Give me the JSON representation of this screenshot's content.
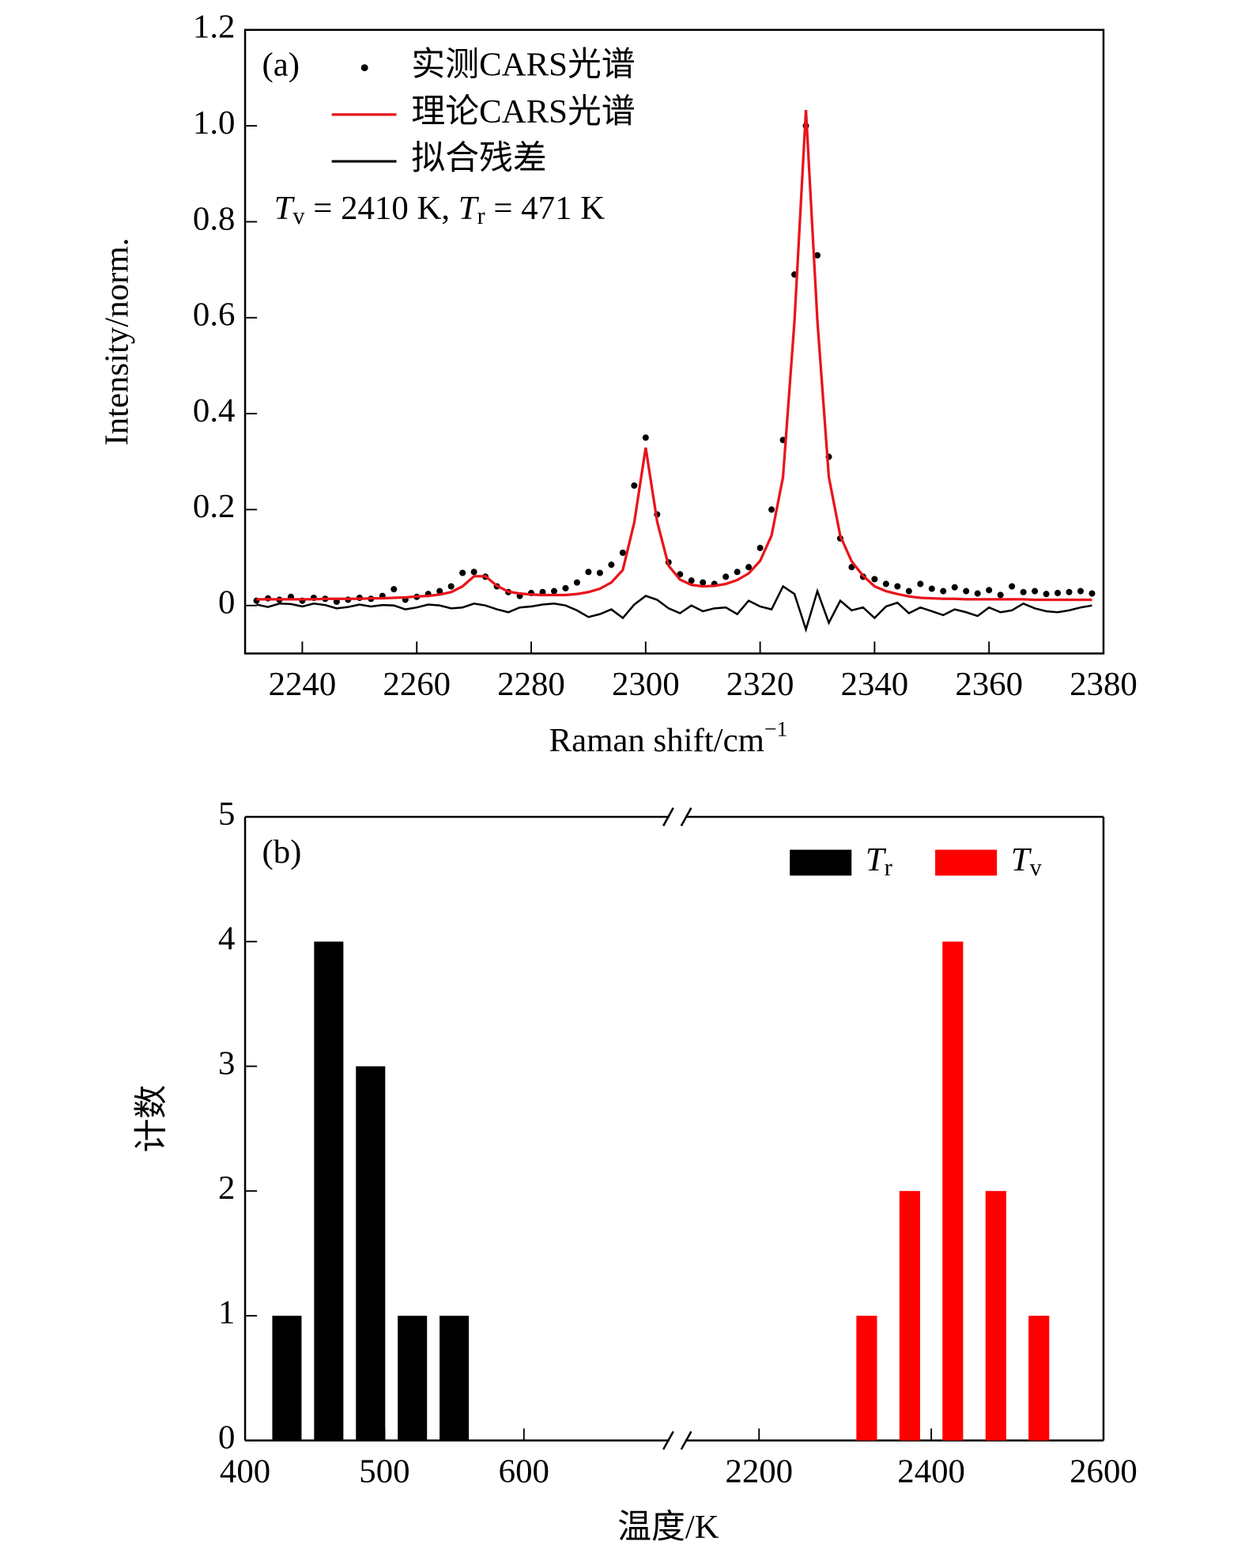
{
  "chart_data": [
    {
      "type": "line",
      "panel_label": "(a)",
      "x_label": "Raman shift/cm−1",
      "y_label": "Intensity/norm.",
      "annotation": "Tv = 2410 K, Tr = 471 K",
      "xlim": [
        2230,
        2380
      ],
      "xticks": [
        2240,
        2260,
        2280,
        2300,
        2320,
        2340,
        2360,
        2380
      ],
      "ylim": [
        -0.1,
        1.2
      ],
      "yticks": [
        0,
        0.2,
        0.4,
        0.6,
        0.8,
        {
          "value": 1,
          "label": "1.0"
        },
        1.2
      ],
      "legend": "upper left",
      "x": [
        2232,
        2234,
        2236,
        2238,
        2240,
        2242,
        2244,
        2246,
        2248,
        2250,
        2252,
        2254,
        2256,
        2258,
        2260,
        2262,
        2264,
        2266,
        2268,
        2270,
        2272,
        2274,
        2276,
        2278,
        2280,
        2282,
        2284,
        2286,
        2288,
        2290,
        2292,
        2294,
        2296,
        2298,
        2300,
        2302,
        2304,
        2306,
        2308,
        2310,
        2312,
        2314,
        2316,
        2318,
        2320,
        2322,
        2324,
        2326,
        2328,
        2330,
        2332,
        2334,
        2336,
        2338,
        2340,
        2342,
        2344,
        2346,
        2348,
        2350,
        2352,
        2354,
        2356,
        2358,
        2360,
        2362,
        2364,
        2366,
        2368,
        2370,
        2372,
        2374,
        2376,
        2378
      ],
      "series": [
        {
          "name": "实测CARS光谱",
          "color": "#000000",
          "mode": "markers",
          "values": [
            0.01,
            0.015,
            0.012,
            0.018,
            0.01,
            0.016,
            0.014,
            0.008,
            0.012,
            0.016,
            0.014,
            0.02,
            0.034,
            0.012,
            0.018,
            0.024,
            0.03,
            0.04,
            0.068,
            0.07,
            0.06,
            0.04,
            0.028,
            0.02,
            0.026,
            0.028,
            0.03,
            0.036,
            0.048,
            0.07,
            0.068,
            0.085,
            0.11,
            0.25,
            0.35,
            0.19,
            0.09,
            0.065,
            0.052,
            0.048,
            0.045,
            0.06,
            0.07,
            0.08,
            0.12,
            0.2,
            0.345,
            0.69,
            1.0,
            0.73,
            0.31,
            0.14,
            0.08,
            0.06,
            0.055,
            0.045,
            0.04,
            0.03,
            0.045,
            0.035,
            0.03,
            0.038,
            0.03,
            0.025,
            0.032,
            0.022,
            0.04,
            0.028,
            0.03,
            0.024,
            0.026,
            0.028,
            0.03,
            0.025
          ]
        },
        {
          "name": "理论CARS光谱",
          "color": "#e8141b",
          "mode": "line",
          "values": [
            0.013,
            0.013,
            0.013,
            0.013,
            0.013,
            0.013,
            0.014,
            0.014,
            0.014,
            0.014,
            0.015,
            0.015,
            0.016,
            0.017,
            0.019,
            0.02,
            0.023,
            0.028,
            0.04,
            0.061,
            0.061,
            0.041,
            0.029,
            0.025,
            0.023,
            0.022,
            0.022,
            0.022,
            0.024,
            0.028,
            0.035,
            0.048,
            0.074,
            0.173,
            0.329,
            0.175,
            0.083,
            0.054,
            0.043,
            0.04,
            0.041,
            0.045,
            0.053,
            0.067,
            0.093,
            0.146,
            0.268,
            0.593,
            1.033,
            0.594,
            0.268,
            0.145,
            0.092,
            0.062,
            0.04,
            0.03,
            0.024,
            0.019,
            0.016,
            0.015,
            0.014,
            0.014,
            0.013,
            0.013,
            0.013,
            0.013,
            0.013,
            0.013,
            0.012,
            0.012,
            0.012,
            0.012,
            0.012,
            0.012
          ]
        },
        {
          "name": "拟合残差",
          "color": "#000000",
          "mode": "line",
          "values": [
            0.002,
            -0.003,
            0.004,
            0.003,
            -0.002,
            0.004,
            0.001,
            -0.006,
            -0.003,
            0.002,
            -0.002,
            0.001,
            0.0,
            -0.008,
            -0.004,
            0.002,
            0.0,
            -0.006,
            -0.004,
            0.004,
            0.0,
            -0.008,
            -0.014,
            -0.004,
            -0.002,
            0.002,
            0.004,
            0.0,
            -0.01,
            -0.024,
            -0.018,
            -0.008,
            -0.026,
            0.002,
            0.02,
            0.012,
            -0.006,
            -0.016,
            0.0,
            -0.012,
            -0.006,
            -0.004,
            -0.018,
            0.01,
            -0.002,
            -0.008,
            0.04,
            0.024,
            -0.05,
            0.03,
            -0.036,
            0.01,
            -0.01,
            -0.004,
            -0.026,
            -0.002,
            0.006,
            -0.016,
            -0.004,
            -0.012,
            -0.02,
            -0.008,
            -0.014,
            -0.022,
            -0.004,
            -0.014,
            -0.01,
            0.004,
            -0.006,
            -0.012,
            -0.014,
            -0.01,
            -0.004,
            0.0
          ]
        }
      ]
    },
    {
      "type": "bar",
      "panel_label": "(b)",
      "x_label": "温度/K",
      "y_label": "计数",
      "x_segments": [
        {
          "xlim": [
            400,
            710
          ],
          "xticks": [
            400,
            500,
            600
          ]
        },
        {
          "xlim": [
            2105,
            2600
          ],
          "xticks": [
            2200,
            2400,
            2600
          ]
        }
      ],
      "ylim": [
        0,
        5
      ],
      "yticks": [
        0,
        1,
        2,
        3,
        4,
        5
      ],
      "legend": "upper right",
      "series": [
        {
          "name": "Tr",
          "color": "#000000",
          "x": [
            430,
            460,
            490,
            520,
            550
          ],
          "values": [
            1,
            4,
            3,
            1,
            1
          ]
        },
        {
          "name": "Tv",
          "color": "#ff0000",
          "x": [
            2325,
            2375,
            2425,
            2475,
            2525
          ],
          "values": [
            1,
            2,
            4,
            2,
            1
          ]
        }
      ]
    }
  ]
}
